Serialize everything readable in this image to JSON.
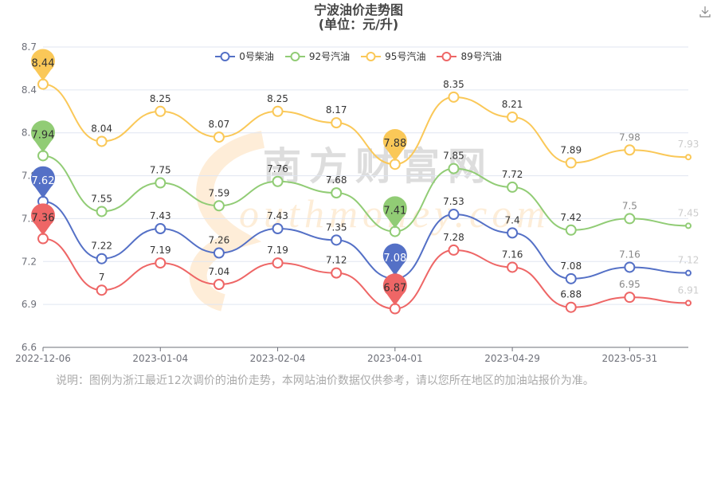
{
  "title": {
    "line1": "宁波油价走势图",
    "line2": "(单位：元/升)"
  },
  "toolbox": {
    "download_icon": "download-icon"
  },
  "note": "说明：图例为浙江最近12次调价的油价走势，本网站油价数据仅供参考，请以您所在地区的加油站报价为准。",
  "watermark": {
    "cn": "南方财富网",
    "en": "Southmoney.com"
  },
  "legend": [
    {
      "name": "0号柴油",
      "color": "#5470c6"
    },
    {
      "name": "92号汽油",
      "color": "#91cc75"
    },
    {
      "name": "95号汽油",
      "color": "#fac858"
    },
    {
      "name": "89号汽油",
      "color": "#ee6666"
    }
  ],
  "chart_data": {
    "type": "line",
    "title": "宁波油价走势图 (单位：元/升)",
    "xlabel": "",
    "ylabel": "",
    "ylim": [
      6.6,
      8.7
    ],
    "yticks": [
      "6.6",
      "6.9",
      "7.2",
      "7.5",
      "7.8",
      "8.1",
      "8.4",
      "8.7"
    ],
    "xtick_labels": [
      {
        "index": 0,
        "label": "2022-12-06"
      },
      {
        "index": 2,
        "label": "2023-01-04"
      },
      {
        "index": 4,
        "label": "2023-02-04"
      },
      {
        "index": 6,
        "label": "2023-04-01"
      },
      {
        "index": 8,
        "label": "2023-04-29"
      },
      {
        "index": 10,
        "label": "2023-05-31"
      }
    ],
    "grid": true,
    "legend_position": "top",
    "smooth": true,
    "series": [
      {
        "name": "0号柴油",
        "color": "#5470c6",
        "values": [
          7.62,
          7.22,
          7.43,
          7.26,
          7.43,
          7.35,
          7.08,
          7.53,
          7.4,
          7.08,
          7.16,
          7.12
        ],
        "max_marker": 7.62,
        "min_marker": 7.08
      },
      {
        "name": "92号汽油",
        "color": "#91cc75",
        "values": [
          7.94,
          7.55,
          7.75,
          7.59,
          7.76,
          7.68,
          7.41,
          7.85,
          7.72,
          7.42,
          7.5,
          7.45
        ],
        "max_marker": 7.94,
        "min_marker": 7.41
      },
      {
        "name": "95号汽油",
        "color": "#fac858",
        "values": [
          8.44,
          8.04,
          8.25,
          8.07,
          8.25,
          8.17,
          7.88,
          8.35,
          8.21,
          7.89,
          7.98,
          7.93
        ],
        "max_marker": 8.44,
        "min_marker": 7.88
      },
      {
        "name": "89号汽油",
        "color": "#ee6666",
        "values": [
          7.36,
          7.0,
          7.19,
          7.04,
          7.19,
          7.12,
          6.87,
          7.28,
          7.16,
          6.88,
          6.95,
          6.91
        ],
        "max_marker": 7.36,
        "min_marker": 6.87
      }
    ]
  }
}
